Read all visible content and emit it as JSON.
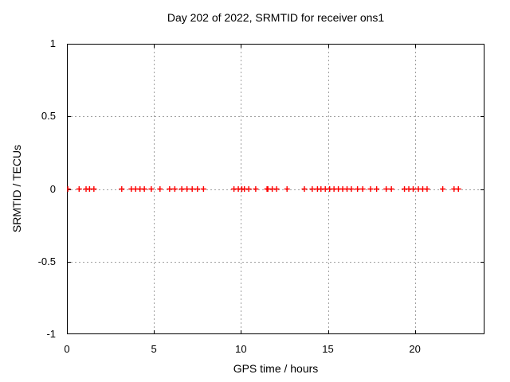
{
  "page": {
    "background": "#ffffff",
    "text_color": "#000000"
  },
  "chart_data": {
    "type": "scatter",
    "title": "Day 202 of 2022, SRMTID for receiver ons1",
    "xlabel": "GPS time / hours",
    "ylabel": "SRMTID / TECUs",
    "xlim": [
      0,
      24
    ],
    "ylim": [
      -1,
      1
    ],
    "xtick_values": [
      0,
      5,
      10,
      15,
      20
    ],
    "xtick_labels": [
      "0",
      "5",
      "10",
      "15",
      "20"
    ],
    "ytick_values": [
      1,
      0.5,
      0,
      -0.5,
      -1
    ],
    "ytick_labels": [
      "1",
      "0.5",
      "0",
      "-0.5",
      "-1"
    ],
    "grid": {
      "show": true,
      "color": "#a0a0a0",
      "style": "dashed",
      "dash": [
        2,
        3
      ]
    },
    "frame_color": "#000000",
    "tick_length": 5,
    "legend": null,
    "marker": {
      "symbol": "plus",
      "color": "#ff0000",
      "size": 7,
      "stroke_width": 1.4
    },
    "series": [
      {
        "name": "SRMTID",
        "x": [
          0.05,
          0.7,
          1.1,
          1.3,
          1.55,
          3.15,
          3.7,
          3.95,
          4.2,
          4.45,
          4.85,
          5.35,
          5.9,
          6.2,
          6.6,
          6.9,
          7.2,
          7.5,
          7.85,
          9.6,
          9.85,
          10.05,
          10.2,
          10.45,
          10.85,
          11.5,
          11.55,
          11.8,
          12.05,
          12.65,
          13.65,
          14.1,
          14.4,
          14.6,
          14.85,
          15.1,
          15.35,
          15.6,
          15.85,
          16.1,
          16.35,
          16.7,
          17.0,
          17.45,
          17.8,
          18.35,
          18.65,
          19.4,
          19.65,
          19.9,
          20.2,
          20.45,
          20.7,
          21.6,
          22.25,
          22.5
        ],
        "y": [
          0,
          0,
          0,
          0,
          0,
          0,
          0,
          0,
          0,
          0,
          0,
          0,
          0,
          0,
          0,
          0,
          0,
          0,
          0,
          0,
          0,
          0,
          0,
          0,
          0,
          0,
          0,
          0,
          0,
          0,
          0,
          0,
          0,
          0,
          0,
          0,
          0,
          0,
          0,
          0,
          0,
          0,
          0,
          0,
          0,
          0,
          0,
          0,
          0,
          0,
          0,
          0,
          0,
          0,
          0,
          0
        ]
      }
    ]
  }
}
